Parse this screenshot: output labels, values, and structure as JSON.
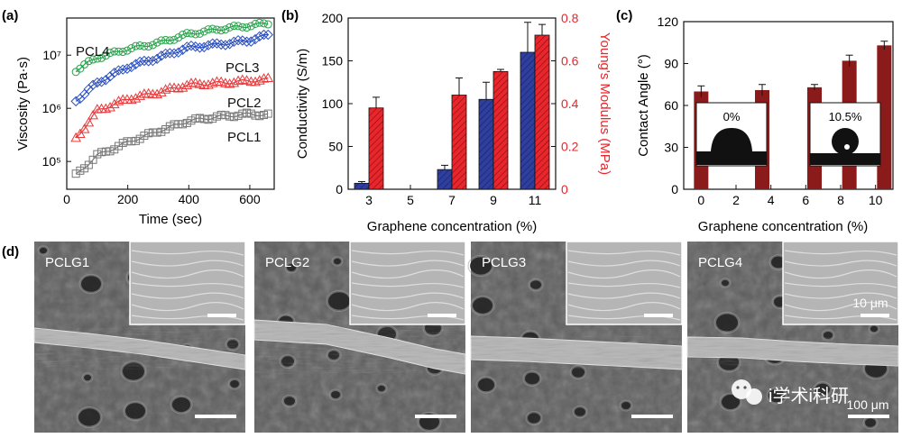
{
  "panels": {
    "a": {
      "label": "(a)"
    },
    "b": {
      "label": "(b)"
    },
    "c": {
      "label": "(c)"
    },
    "d": {
      "label": "(d)"
    }
  },
  "chart_data": [
    {
      "panel": "a",
      "type": "scatter",
      "xlabel": "Time (sec)",
      "ylabel": "Viscosity (Pa·s)",
      "xlim": [
        0,
        680
      ],
      "ylim": [
        30000,
        50000000
      ],
      "log_y": true,
      "x_ticks": [
        0,
        200,
        400,
        600
      ],
      "y_ticks": [
        {
          "value": 100000,
          "label": "10⁵"
        },
        {
          "value": 1000000,
          "label": "10⁶"
        },
        {
          "value": 10000000,
          "label": "10⁷"
        }
      ],
      "series": [
        {
          "name": "PCL4",
          "color": "#27a04a",
          "marker": "circle",
          "x": [
            30,
            100,
            200,
            300,
            400,
            500,
            600,
            660
          ],
          "values": [
            5200000,
            9000000,
            13000000,
            17000000,
            25000000,
            31000000,
            36000000,
            40000000
          ]
        },
        {
          "name": "PCL3",
          "color": "#2b4fc0",
          "marker": "diamond",
          "x": [
            30,
            100,
            200,
            300,
            400,
            500,
            600,
            660
          ],
          "values": [
            1400000,
            3000000,
            6000000,
            9000000,
            14000000,
            16000000,
            19000000,
            24000000
          ]
        },
        {
          "name": "PCL2",
          "color": "#e8393b",
          "marker": "triangle",
          "x": [
            30,
            100,
            200,
            300,
            400,
            500,
            600,
            660
          ],
          "values": [
            270000,
            900000,
            1500000,
            2000000,
            2800000,
            3000000,
            3300000,
            3500000
          ]
        },
        {
          "name": "PCL1",
          "color": "#777777",
          "marker": "square",
          "x": [
            30,
            100,
            200,
            300,
            400,
            500,
            600,
            660
          ],
          "values": [
            55000,
            130000,
            230000,
            370000,
            580000,
            700000,
            780000,
            750000
          ]
        }
      ]
    },
    {
      "panel": "b",
      "type": "bar",
      "xlabel": "Graphene concentration (%)",
      "ylabel": "Conductivity (S/m)",
      "ylabel_right": "Young's Modulus (MPa)",
      "x_ticks": [
        3,
        5,
        7,
        9,
        11
      ],
      "ylim": [
        0,
        200
      ],
      "y_ticks": [
        0,
        50,
        100,
        150,
        200
      ],
      "ylim_right": [
        0,
        0.8
      ],
      "y_ticks_right": [
        "0",
        "0.2",
        "0.4",
        "0.6",
        "0.8"
      ],
      "categories": [
        3,
        5,
        7,
        9,
        11
      ],
      "series": [
        {
          "name": "Conductivity",
          "axis": "left",
          "color": "#2e3f9f",
          "values": [
            7,
            0,
            23,
            105,
            160
          ],
          "errors": [
            2,
            0,
            5,
            20,
            35
          ]
        },
        {
          "name": "Young's Modulus",
          "axis": "right",
          "color": "#e8262b",
          "values": [
            0.38,
            0,
            0.44,
            0.55,
            0.72
          ],
          "errors": [
            0.05,
            0,
            0.08,
            0.01,
            0.05
          ]
        }
      ]
    },
    {
      "panel": "c",
      "type": "bar",
      "xlabel": "Graphene concentration (%)",
      "ylabel": "Contact Angle (°)",
      "xlim": [
        -1,
        11
      ],
      "x_ticks": [
        0,
        2,
        4,
        6,
        8,
        10
      ],
      "ylim": [
        0,
        120
      ],
      "y_ticks": [
        0,
        30,
        60,
        90,
        120
      ],
      "bar_color": "#8b1a1a",
      "x": [
        0,
        3.5,
        6.5,
        8.5,
        10.5
      ],
      "values": [
        70,
        71,
        73,
        92,
        103
      ],
      "errors": [
        4,
        4,
        2,
        4,
        3
      ],
      "insets": [
        {
          "label": "0%"
        },
        {
          "label": "10.5%"
        }
      ]
    }
  ],
  "sem_images": [
    {
      "label": "PCLG1"
    },
    {
      "label": "PCLG2"
    },
    {
      "label": "PCLG3"
    },
    {
      "label": "PCLG4"
    }
  ],
  "scale_bars": {
    "inset": "10 μm",
    "main": "100 μm"
  },
  "watermark": {
    "text": "i学术i科研"
  }
}
